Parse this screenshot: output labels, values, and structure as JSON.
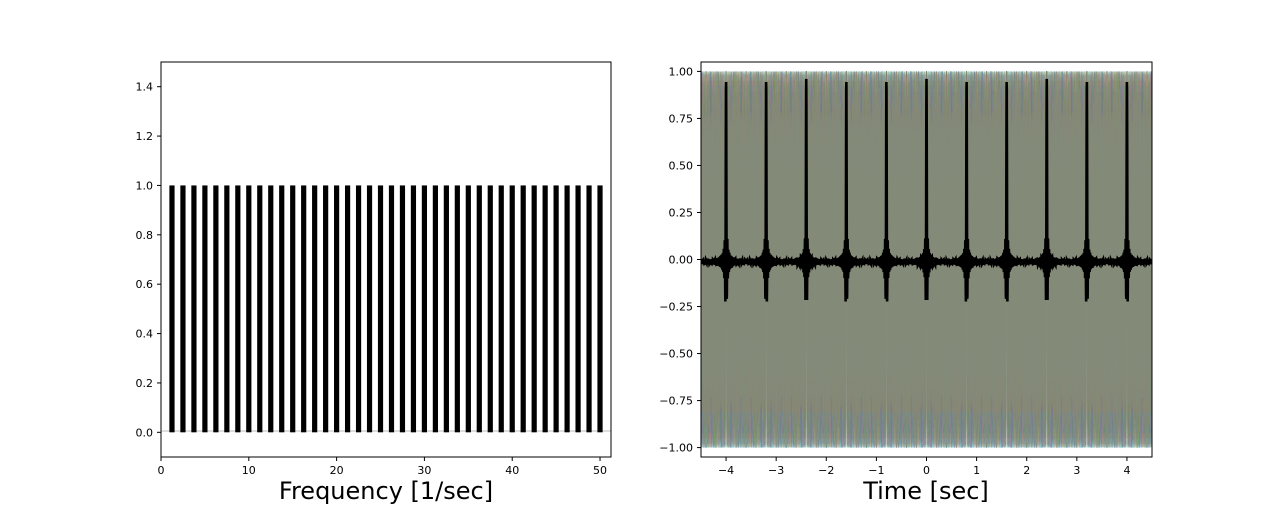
{
  "chart_data": [
    {
      "type": "bar",
      "title": "",
      "xlabel": "Frequency [1/sec]",
      "ylabel": "",
      "xlim": [
        0,
        51.25
      ],
      "ylim": [
        -0.1,
        1.5
      ],
      "xticks": [
        "0",
        "10",
        "20",
        "30",
        "40",
        "50"
      ],
      "yticks": [
        "0.0",
        "0.2",
        "0.4",
        "0.6",
        "0.8",
        "1.0",
        "1.2",
        "1.4"
      ],
      "bar_color": "#000000",
      "x": [
        1.25,
        2.5,
        3.75,
        5,
        6.25,
        7.5,
        8.75,
        10,
        11.25,
        12.5,
        13.75,
        15,
        16.25,
        17.5,
        18.75,
        20,
        21.25,
        22.5,
        23.75,
        25,
        26.25,
        27.5,
        28.75,
        30,
        31.25,
        32.5,
        33.75,
        35,
        36.25,
        37.5,
        38.75,
        40,
        41.25,
        42.5,
        43.75,
        45,
        46.25,
        47.5,
        48.75,
        50
      ],
      "values": [
        1,
        1,
        1,
        1,
        1,
        1,
        1,
        1,
        1,
        1,
        1,
        1,
        1,
        1,
        1,
        1,
        1,
        1,
        1,
        1,
        1,
        1,
        1,
        1,
        1,
        1,
        1,
        1,
        1,
        1,
        1,
        1,
        1,
        1,
        1,
        1,
        1,
        1,
        1,
        1
      ],
      "grid": false
    },
    {
      "type": "line",
      "title": "",
      "xlabel": "Time [sec]",
      "ylabel": "",
      "xlim": [
        -4.5,
        4.5
      ],
      "ylim": [
        -1.05,
        1.05
      ],
      "xticks": [
        "−4",
        "−3",
        "−2",
        "−1",
        "0",
        "1",
        "2",
        "3",
        "4"
      ],
      "yticks": [
        "−1.00",
        "−0.75",
        "−0.50",
        "−0.25",
        "0.00",
        "0.25",
        "0.50",
        "0.75",
        "1.00"
      ],
      "series": [
        {
          "description": "40 unit-amplitude cosine components cos(2*pi*f*t), f = 1.25 ... 50 Hz",
          "frequencies": [
            1.25,
            2.5,
            3.75,
            5,
            6.25,
            7.5,
            8.75,
            10,
            11.25,
            12.5,
            13.75,
            15,
            16.25,
            17.5,
            18.75,
            20,
            21.25,
            22.5,
            23.75,
            25,
            26.25,
            27.5,
            28.75,
            30,
            31.25,
            32.5,
            33.75,
            35,
            36.25,
            37.5,
            38.75,
            40,
            41.25,
            42.5,
            43.75,
            45,
            46.25,
            47.5,
            48.75,
            50
          ],
          "amplitude": 1,
          "colors": [
            "#1f77b4",
            "#ff7f0e",
            "#2ca02c",
            "#d62728",
            "#9467bd",
            "#8c564b",
            "#e377c2",
            "#7f7f7f",
            "#bcbd22",
            "#17becf"
          ],
          "opacity": 0.18
        },
        {
          "description": "mean of the 40 components",
          "color": "#000000",
          "peak_value": 0.96,
          "peak_time": 0
        }
      ],
      "grid": false
    }
  ]
}
